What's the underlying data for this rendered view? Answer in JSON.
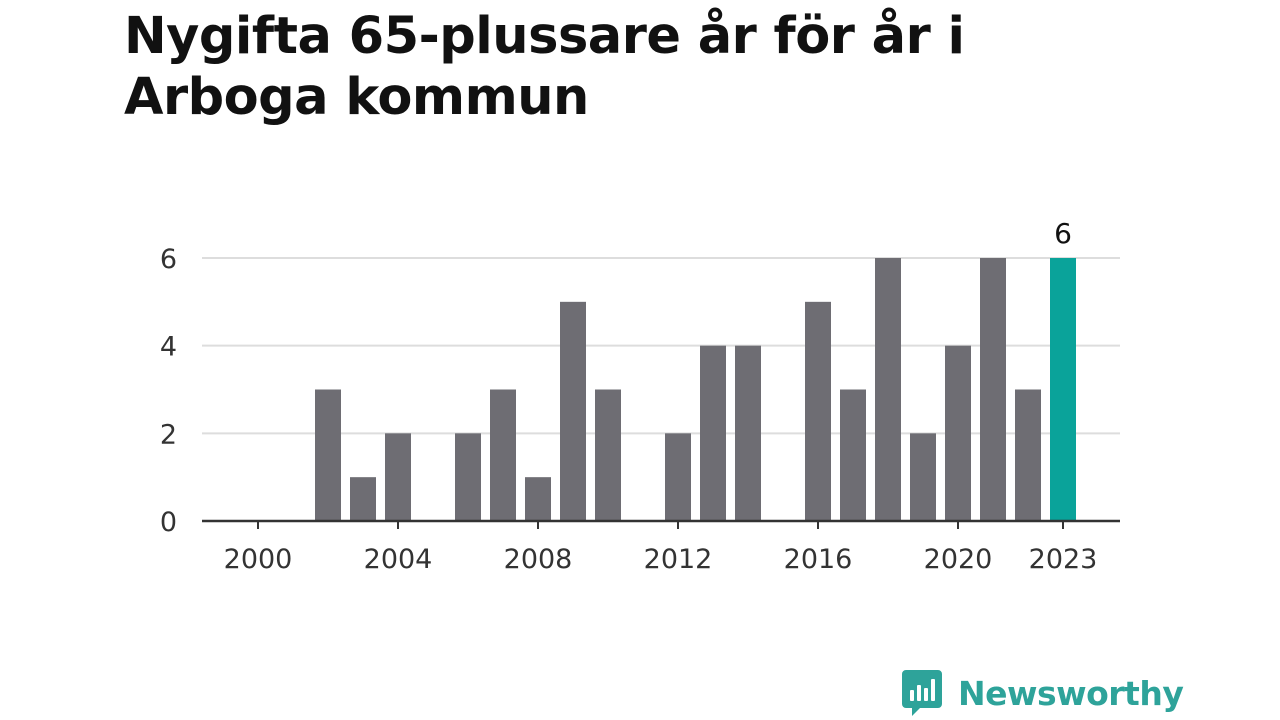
{
  "colors": {
    "bar": "#6e6d73",
    "highlight": "#0aa39a",
    "grid": "#dddddd",
    "axis": "#333333",
    "brand": "#2ea39a"
  },
  "brand": {
    "name": "Newsworthy",
    "icon": "bar-chart-speech-bubble-icon"
  },
  "chart_data": {
    "type": "bar",
    "title": "Nygifta 65-plussare år för år i Arboga kommun",
    "xlabel": "",
    "ylabel": "",
    "x": [
      2000,
      2001,
      2002,
      2003,
      2004,
      2005,
      2006,
      2007,
      2008,
      2009,
      2010,
      2011,
      2012,
      2013,
      2014,
      2015,
      2016,
      2017,
      2018,
      2019,
      2020,
      2021,
      2022,
      2023
    ],
    "values": [
      0,
      0,
      3,
      1,
      2,
      0,
      2,
      3,
      1,
      5,
      3,
      0,
      2,
      4,
      4,
      0,
      5,
      3,
      6,
      2,
      4,
      6,
      3,
      6
    ],
    "xticks": [
      2000,
      2004,
      2008,
      2012,
      2016,
      2020,
      2023
    ],
    "yticks": [
      0,
      2,
      4,
      6
    ],
    "ylim": [
      0,
      6
    ],
    "highlight": {
      "x": 2023,
      "label": "6"
    },
    "grid": true,
    "legend": "none"
  }
}
